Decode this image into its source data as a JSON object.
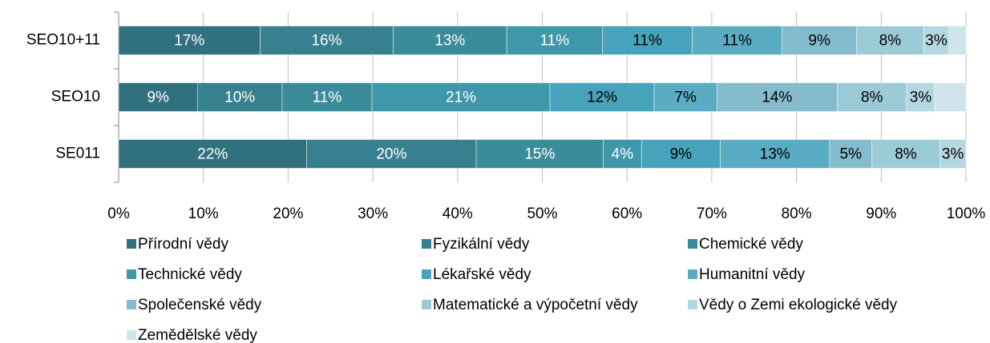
{
  "chart_data": {
    "type": "stacked-barh",
    "categories": [
      "SEO10+11",
      "SEO10",
      "SE011"
    ],
    "series": [
      {
        "name": "Přírodní vědy",
        "color": "#31707f",
        "values": [
          16.7,
          9.3,
          22.2
        ],
        "value_labels": [
          "17%",
          "9%",
          "22%"
        ]
      },
      {
        "name": "Fyzikální vědy",
        "color": "#36808f",
        "values": [
          15.7,
          10.0,
          20.0
        ],
        "value_labels": [
          "16%",
          "10%",
          "20%"
        ]
      },
      {
        "name": "Chemické vědy",
        "color": "#3a8c9b",
        "values": [
          13.4,
          10.6,
          15.0
        ],
        "value_labels": [
          "13%",
          "11%",
          "15%"
        ]
      },
      {
        "name": "Technické vědy",
        "color": "#3f97aa",
        "values": [
          11.3,
          21.0,
          4.5
        ],
        "value_labels": [
          "11%",
          "21%",
          "4%"
        ]
      },
      {
        "name": "Lékařské vědy",
        "color": "#47a3bb",
        "values": [
          10.6,
          12.3,
          9.3
        ],
        "value_labels": [
          "11%",
          "12%",
          "9%"
        ]
      },
      {
        "name": "Humanitní vědy",
        "color": "#5aacc2",
        "values": [
          10.6,
          7.4,
          12.9
        ],
        "value_labels": [
          "11%",
          "7%",
          "13%"
        ]
      },
      {
        "name": "Společenské vědy",
        "color": "#85bccd",
        "values": [
          8.8,
          14.2,
          5.0
        ],
        "value_labels": [
          "9%",
          "14%",
          "5%"
        ]
      },
      {
        "name": "Matematické a výpočetní vědy",
        "color": "#9ccbd8",
        "values": [
          7.9,
          8.2,
          8.0
        ],
        "value_labels": [
          "8%",
          "8%",
          "8%"
        ]
      },
      {
        "name": "Vědy o Zemi ekologické vědy",
        "color": "#b5d7e2",
        "values": [
          3.0,
          3.3,
          3.1
        ],
        "value_labels": [
          "3%",
          "3%",
          "3%"
        ]
      },
      {
        "name": "Zemědělské vědy",
        "color": "#d0e4ec",
        "values": [
          2.0,
          3.7,
          0
        ],
        "value_labels": [
          null,
          null,
          null
        ]
      }
    ],
    "xlim": [
      0,
      100
    ],
    "xticks": [
      {
        "value": 0,
        "label": "0%"
      },
      {
        "value": 10,
        "label": "10%"
      },
      {
        "value": 20,
        "label": "20%"
      },
      {
        "value": 30,
        "label": "30%"
      },
      {
        "value": 40,
        "label": "40%"
      },
      {
        "value": 50,
        "label": "50%"
      },
      {
        "value": 60,
        "label": "60%"
      },
      {
        "value": 70,
        "label": "70%"
      },
      {
        "value": 80,
        "label": "80%"
      },
      {
        "value": 90,
        "label": "90%"
      },
      {
        "value": 100,
        "label": "100%"
      }
    ],
    "grid": true,
    "legend": "bottom"
  }
}
